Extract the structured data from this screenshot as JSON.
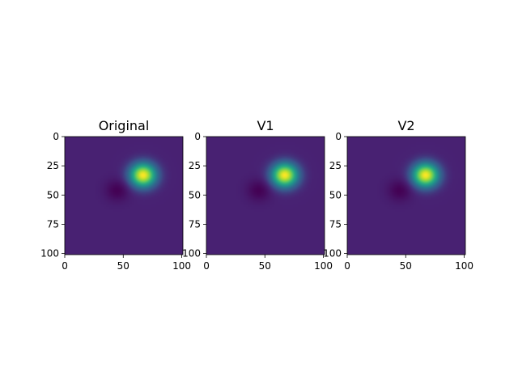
{
  "chart_data": [
    {
      "type": "heatmap",
      "title": "Original",
      "xlabel": "",
      "ylabel": "",
      "xlim": [
        0,
        101
      ],
      "ylim": [
        101,
        0
      ],
      "xticks": [
        0,
        50,
        100
      ],
      "yticks": [
        0,
        25,
        50,
        75,
        100
      ],
      "colormap": "viridis",
      "value_range": [
        0,
        1
      ],
      "features": [
        {
          "kind": "peak",
          "x": 67,
          "y": 33,
          "value": 1.0,
          "sx": 11,
          "sy": 10
        },
        {
          "kind": "trough",
          "x": 45,
          "y": 46,
          "value": 0.0,
          "sx": 10,
          "sy": 9
        }
      ],
      "background_value": 0.12
    },
    {
      "type": "heatmap",
      "title": "V1",
      "xlabel": "",
      "ylabel": "",
      "xlim": [
        0,
        101
      ],
      "ylim": [
        101,
        0
      ],
      "xticks": [
        0,
        50,
        100
      ],
      "yticks": [
        0,
        25,
        50,
        75,
        100
      ],
      "colormap": "viridis",
      "value_range": [
        0,
        1
      ],
      "features": [
        {
          "kind": "peak",
          "x": 67,
          "y": 33,
          "value": 1.0,
          "sx": 11,
          "sy": 10
        },
        {
          "kind": "trough",
          "x": 45,
          "y": 46,
          "value": 0.0,
          "sx": 10,
          "sy": 9
        }
      ],
      "background_value": 0.12
    },
    {
      "type": "heatmap",
      "title": "V2",
      "xlabel": "",
      "ylabel": "",
      "xlim": [
        0,
        101
      ],
      "ylim": [
        101,
        0
      ],
      "xticks": [
        0,
        50,
        100
      ],
      "yticks": [
        0,
        25,
        50,
        75,
        100
      ],
      "colormap": "viridis",
      "value_range": [
        0,
        1
      ],
      "features": [
        {
          "kind": "peak",
          "x": 67,
          "y": 33,
          "value": 1.0,
          "sx": 11,
          "sy": 10
        },
        {
          "kind": "trough",
          "x": 45,
          "y": 46,
          "value": 0.0,
          "sx": 10,
          "sy": 9
        }
      ],
      "background_value": 0.12
    }
  ]
}
